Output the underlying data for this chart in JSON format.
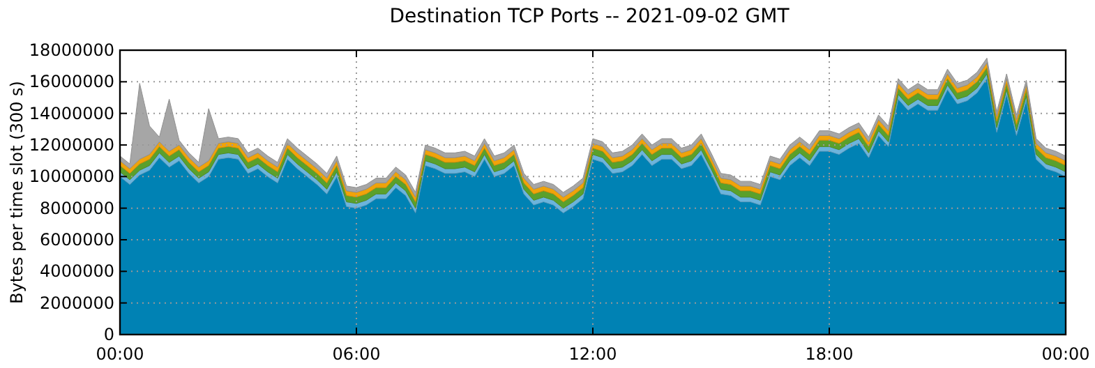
{
  "chart_data": {
    "type": "area",
    "stacked": true,
    "title": "Destination TCP Ports -- 2021-09-02 GMT",
    "ylabel": "Bytes per time slot (300 s)",
    "x": [
      0,
      0.25,
      0.5,
      0.75,
      1,
      1.25,
      1.5,
      1.75,
      2,
      2.25,
      2.5,
      2.75,
      3,
      3.25,
      3.5,
      3.75,
      4,
      4.25,
      4.5,
      4.75,
      5,
      5.25,
      5.5,
      5.75,
      6,
      6.25,
      6.5,
      6.75,
      7,
      7.25,
      7.5,
      7.75,
      8,
      8.25,
      8.5,
      8.75,
      9,
      9.25,
      9.5,
      9.75,
      10,
      10.25,
      10.5,
      10.75,
      11,
      11.25,
      11.5,
      11.75,
      12,
      12.25,
      12.5,
      12.75,
      13,
      13.25,
      13.5,
      13.75,
      14,
      14.25,
      14.5,
      14.75,
      15,
      15.25,
      15.5,
      15.75,
      16,
      16.25,
      16.5,
      16.75,
      17,
      17.25,
      17.5,
      17.75,
      18,
      18.25,
      18.5,
      18.75,
      19,
      19.25,
      19.5,
      19.75,
      20,
      20.25,
      20.5,
      20.75,
      21,
      21.25,
      21.5,
      21.75,
      22,
      22.25,
      22.5,
      22.75,
      23,
      23.25,
      23.5,
      23.75,
      24
    ],
    "series": [
      {
        "color": "#0082b4",
        "values": [
          10000000,
          9500000,
          10100000,
          10400000,
          11200000,
          10600000,
          11000000,
          10200000,
          9600000,
          10000000,
          11100000,
          11200000,
          11100000,
          10200000,
          10500000,
          10000000,
          9600000,
          11100000,
          10500000,
          10000000,
          9500000,
          8900000,
          10000000,
          8100000,
          8000000,
          8200000,
          8600000,
          8600000,
          9300000,
          8800000,
          7700000,
          10700000,
          10500000,
          10200000,
          10200000,
          10300000,
          10000000,
          11100000,
          10000000,
          10200000,
          10700000,
          8900000,
          8200000,
          8400000,
          8200000,
          7700000,
          8100000,
          8600000,
          11100000,
          10900000,
          10200000,
          10300000,
          10700000,
          11400000,
          10700000,
          11100000,
          11100000,
          10500000,
          10700000,
          11400000,
          10200000,
          8900000,
          8800000,
          8400000,
          8400000,
          8200000,
          10000000,
          9800000,
          10700000,
          11200000,
          10700000,
          11600000,
          11600000,
          11400000,
          11800000,
          12100000,
          11200000,
          12600000,
          11900000,
          14900000,
          14200000,
          14600000,
          14200000,
          14200000,
          15500000,
          14600000,
          14800000,
          15300000,
          16200000,
          12800000,
          15200000,
          12600000,
          14800000,
          11100000,
          10500000,
          10300000,
          10000000
        ]
      },
      {
        "color": "#6cb4dc",
        "values": [
          300000,
          300000,
          300000,
          300000,
          300000,
          300000,
          300000,
          300000,
          300000,
          300000,
          300000,
          300000,
          300000,
          300000,
          300000,
          300000,
          300000,
          300000,
          300000,
          300000,
          300000,
          300000,
          300000,
          300000,
          300000,
          300000,
          300000,
          300000,
          300000,
          300000,
          300000,
          300000,
          300000,
          300000,
          300000,
          300000,
          300000,
          300000,
          300000,
          300000,
          300000,
          300000,
          300000,
          300000,
          300000,
          300000,
          300000,
          300000,
          300000,
          300000,
          300000,
          300000,
          300000,
          300000,
          300000,
          300000,
          300000,
          300000,
          300000,
          300000,
          300000,
          300000,
          300000,
          300000,
          300000,
          300000,
          300000,
          300000,
          300000,
          300000,
          300000,
          300000,
          300000,
          300000,
          300000,
          300000,
          300000,
          300000,
          300000,
          300000,
          300000,
          300000,
          300000,
          300000,
          300000,
          300000,
          300000,
          300000,
          300000,
          300000,
          300000,
          300000,
          300000,
          300000,
          300000,
          300000,
          300000
        ]
      },
      {
        "color": "#5aa02c",
        "values": [
          400000,
          400000,
          400000,
          400000,
          400000,
          400000,
          400000,
          400000,
          400000,
          400000,
          400000,
          400000,
          400000,
          400000,
          400000,
          400000,
          400000,
          400000,
          400000,
          400000,
          400000,
          400000,
          400000,
          400000,
          400000,
          400000,
          400000,
          400000,
          400000,
          400000,
          400000,
          400000,
          400000,
          400000,
          400000,
          400000,
          400000,
          400000,
          400000,
          400000,
          400000,
          400000,
          400000,
          400000,
          400000,
          400000,
          400000,
          400000,
          400000,
          400000,
          400000,
          400000,
          400000,
          400000,
          400000,
          400000,
          400000,
          400000,
          400000,
          400000,
          400000,
          400000,
          400000,
          400000,
          400000,
          400000,
          400000,
          400000,
          400000,
          400000,
          400000,
          400000,
          400000,
          400000,
          400000,
          400000,
          400000,
          400000,
          400000,
          400000,
          400000,
          400000,
          400000,
          400000,
          400000,
          400000,
          400000,
          400000,
          400000,
          400000,
          400000,
          400000,
          400000,
          400000,
          400000,
          400000,
          400000
        ]
      },
      {
        "color": "#f0a30a",
        "values": [
          300000,
          300000,
          300000,
          300000,
          300000,
          300000,
          300000,
          300000,
          300000,
          300000,
          300000,
          300000,
          300000,
          300000,
          300000,
          300000,
          300000,
          300000,
          300000,
          300000,
          300000,
          300000,
          300000,
          300000,
          300000,
          300000,
          300000,
          300000,
          300000,
          300000,
          300000,
          300000,
          300000,
          300000,
          300000,
          300000,
          300000,
          300000,
          300000,
          300000,
          300000,
          300000,
          300000,
          300000,
          300000,
          300000,
          300000,
          300000,
          300000,
          300000,
          300000,
          300000,
          300000,
          300000,
          300000,
          300000,
          300000,
          300000,
          300000,
          300000,
          300000,
          300000,
          300000,
          300000,
          300000,
          300000,
          300000,
          300000,
          300000,
          300000,
          300000,
          300000,
          300000,
          300000,
          300000,
          300000,
          300000,
          300000,
          300000,
          300000,
          300000,
          300000,
          300000,
          300000,
          300000,
          300000,
          300000,
          300000,
          300000,
          300000,
          300000,
          300000,
          300000,
          300000,
          300000,
          300000,
          300000
        ]
      },
      {
        "color": "#a6a6a6",
        "values": [
          300000,
          300000,
          4800000,
          1800000,
          300000,
          3300000,
          300000,
          300000,
          300000,
          3300000,
          300000,
          300000,
          300000,
          300000,
          300000,
          300000,
          300000,
          300000,
          300000,
          300000,
          300000,
          300000,
          300000,
          300000,
          300000,
          300000,
          300000,
          300000,
          300000,
          300000,
          300000,
          300000,
          300000,
          300000,
          300000,
          300000,
          300000,
          300000,
          300000,
          300000,
          300000,
          300000,
          300000,
          300000,
          300000,
          300000,
          300000,
          300000,
          300000,
          300000,
          300000,
          300000,
          300000,
          300000,
          300000,
          300000,
          300000,
          300000,
          300000,
          300000,
          300000,
          300000,
          300000,
          300000,
          300000,
          300000,
          300000,
          300000,
          300000,
          300000,
          300000,
          300000,
          300000,
          300000,
          300000,
          300000,
          300000,
          300000,
          300000,
          300000,
          300000,
          300000,
          300000,
          300000,
          300000,
          300000,
          300000,
          300000,
          300000,
          300000,
          300000,
          300000,
          300000,
          300000,
          300000,
          300000,
          300000
        ]
      }
    ],
    "xlim": [
      0,
      24
    ],
    "xticks": [
      {
        "value": 0,
        "label": "00:00"
      },
      {
        "value": 6,
        "label": "06:00"
      },
      {
        "value": 12,
        "label": "12:00"
      },
      {
        "value": 18,
        "label": "18:00"
      },
      {
        "value": 24,
        "label": "00:00"
      }
    ],
    "ylim": [
      0,
      18000000
    ],
    "yticks": [
      0,
      2000000,
      4000000,
      6000000,
      8000000,
      10000000,
      12000000,
      14000000,
      16000000,
      18000000
    ],
    "grid": true
  }
}
